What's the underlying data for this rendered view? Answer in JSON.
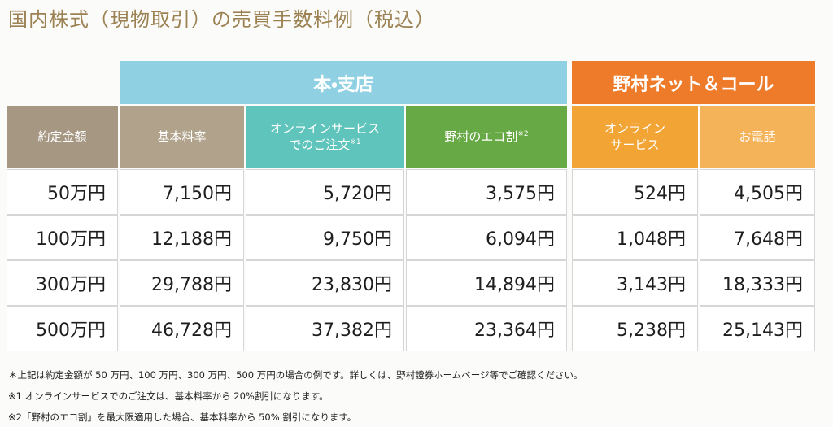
{
  "title": "国内株式（現物取引）の売買手数料例（税込）",
  "table": {
    "groups": [
      "本・支店",
      "野村ネット＆コール"
    ],
    "columns": [
      {
        "lines": [
          "約定金額"
        ]
      },
      {
        "lines": [
          "基本料率"
        ]
      },
      {
        "lines": [
          "オンラインサービス",
          "でのご注文"
        ],
        "note": "※1"
      },
      {
        "lines": [
          "野村のエコ割"
        ],
        "note": "※2"
      },
      {
        "lines": [
          "オンライン",
          "サービス"
        ]
      },
      {
        "lines": [
          "お電話"
        ]
      }
    ],
    "rows": [
      [
        "50万円",
        "7,150円",
        "5,720円",
        "3,575円",
        "524円",
        "4,505円"
      ],
      [
        "100万円",
        "12,188円",
        "9,750円",
        "6,094円",
        "1,048円",
        "7,648円"
      ],
      [
        "300万円",
        "29,788円",
        "23,830円",
        "14,894円",
        "3,143円",
        "18,333円"
      ],
      [
        "500万円",
        "46,728円",
        "37,382円",
        "23,364円",
        "5,238円",
        "25,143円"
      ]
    ]
  },
  "footnotes": [
    "＊上記は約定金額が 50 万円、100 万円、300 万円、500 万円の場合の例です。詳しくは、野村證券ホームページ等でご確認ください。",
    "※1 オンラインサービスでのご注文は、基本料率から 20%割引になります。",
    "※2「野村のエコ割」を最大限適用した場合、基本料率から 50% 割引になります。"
  ]
}
